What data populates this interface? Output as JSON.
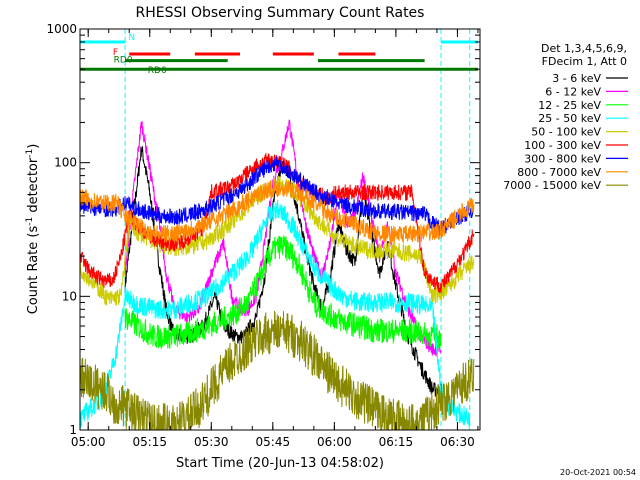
{
  "chart_data": {
    "type": "line",
    "title": "RHESSI Observing Summary Count Rates",
    "xlabel": "Start Time (20-Jun-13 04:58:02)",
    "ylabel_parts": [
      "Count Rate (s",
      "-1",
      " detector",
      "-1",
      ")"
    ],
    "yscale": "log",
    "ylim": [
      1,
      1000
    ],
    "xlim_minutes": [
      0,
      97.5
    ],
    "y_ticks": [
      {
        "v": 1,
        "label": "1"
      },
      {
        "v": 10,
        "label": "10"
      },
      {
        "v": 100,
        "label": "100"
      },
      {
        "v": 1000,
        "label": "1000"
      }
    ],
    "x_ticks": [
      {
        "t": 2,
        "label": "05:00"
      },
      {
        "t": 17,
        "label": "05:15"
      },
      {
        "t": 32,
        "label": "05:30"
      },
      {
        "t": 47,
        "label": "05:45"
      },
      {
        "t": 62,
        "label": "06:00"
      },
      {
        "t": 77,
        "label": "06:15"
      },
      {
        "t": 92,
        "label": "06:30"
      }
    ],
    "legend_header": [
      "Det 1,3,4,5,6,9,",
      "FDecim 1, Att 0"
    ],
    "timestamp": "20-Oct-2021 00:54",
    "night_intervals_minutes": [
      [
        0,
        11
      ],
      [
        88,
        95
      ]
    ],
    "flags": [
      {
        "label": "N",
        "color": "#00ffff",
        "y": 800,
        "segments": [
          [
            0,
            11
          ],
          [
            88,
            97
          ]
        ]
      },
      {
        "label": "F",
        "color": "#ff0000",
        "y": 650,
        "segments": [
          [
            12,
            22
          ],
          [
            28,
            39
          ],
          [
            47,
            57
          ],
          [
            63,
            72
          ]
        ]
      },
      {
        "label": "RD0",
        "color": "#007700",
        "y": 580,
        "segments": [
          [
            11,
            36
          ],
          [
            58,
            84
          ]
        ]
      },
      {
        "label": "RD6",
        "color": "#007700",
        "y": 500,
        "segments": [
          [
            0,
            88
          ],
          [
            88,
            97
          ]
        ]
      }
    ],
    "series": [
      {
        "name": "3 - 6 keV",
        "color": "#000000",
        "points": [
          [
            11,
            12
          ],
          [
            13,
            40
          ],
          [
            15,
            130
          ],
          [
            17,
            60
          ],
          [
            19,
            20
          ],
          [
            21,
            8
          ],
          [
            23,
            5
          ],
          [
            27,
            5
          ],
          [
            30,
            6
          ],
          [
            33,
            10
          ],
          [
            35,
            6
          ],
          [
            38,
            5
          ],
          [
            40,
            5
          ],
          [
            43,
            7
          ],
          [
            45,
            14
          ],
          [
            47,
            45
          ],
          [
            49,
            95
          ],
          [
            51,
            80
          ],
          [
            53,
            45
          ],
          [
            55,
            22
          ],
          [
            57,
            12
          ],
          [
            59,
            8
          ],
          [
            61,
            14
          ],
          [
            63,
            35
          ],
          [
            65,
            22
          ],
          [
            67,
            18
          ],
          [
            69,
            60
          ],
          [
            71,
            30
          ],
          [
            73,
            15
          ],
          [
            75,
            25
          ],
          [
            77,
            12
          ],
          [
            80,
            5
          ],
          [
            83,
            3
          ],
          [
            86,
            2
          ],
          [
            88,
            2
          ]
        ]
      },
      {
        "name": "6 - 12 keV",
        "color": "#ff00ff",
        "points": [
          [
            11,
            15
          ],
          [
            13,
            60
          ],
          [
            15,
            200
          ],
          [
            17,
            90
          ],
          [
            19,
            40
          ],
          [
            21,
            15
          ],
          [
            23,
            8
          ],
          [
            26,
            7
          ],
          [
            29,
            8
          ],
          [
            32,
            15
          ],
          [
            35,
            25
          ],
          [
            37,
            10
          ],
          [
            39,
            8
          ],
          [
            41,
            8
          ],
          [
            43,
            10
          ],
          [
            45,
            25
          ],
          [
            47,
            70
          ],
          [
            49,
            110
          ],
          [
            51,
            200
          ],
          [
            53,
            80
          ],
          [
            55,
            35
          ],
          [
            57,
            20
          ],
          [
            59,
            14
          ],
          [
            61,
            25
          ],
          [
            63,
            60
          ],
          [
            65,
            35
          ],
          [
            67,
            40
          ],
          [
            69,
            80
          ],
          [
            71,
            40
          ],
          [
            73,
            20
          ],
          [
            75,
            35
          ],
          [
            77,
            15
          ],
          [
            80,
            8
          ],
          [
            83,
            5
          ],
          [
            86,
            4
          ],
          [
            88,
            4
          ]
        ]
      },
      {
        "name": "12 - 25 keV",
        "color": "#00ff00",
        "points": [
          [
            11,
            7
          ],
          [
            14,
            6
          ],
          [
            18,
            5
          ],
          [
            22,
            5
          ],
          [
            26,
            5.2
          ],
          [
            30,
            5.8
          ],
          [
            34,
            6.5
          ],
          [
            38,
            7.5
          ],
          [
            41,
            9
          ],
          [
            43,
            12
          ],
          [
            45,
            17
          ],
          [
            47,
            22
          ],
          [
            49,
            24
          ],
          [
            51,
            22
          ],
          [
            53,
            18
          ],
          [
            55,
            13
          ],
          [
            57,
            9
          ],
          [
            60,
            7.5
          ],
          [
            64,
            6.5
          ],
          [
            68,
            6
          ],
          [
            72,
            5.5
          ],
          [
            76,
            5.5
          ],
          [
            80,
            5.5
          ],
          [
            84,
            5.2
          ],
          [
            88,
            5
          ]
        ]
      },
      {
        "name": "25 - 50 keV",
        "color": "#00ffff",
        "points": [
          [
            0,
            1.2
          ],
          [
            3,
            1.5
          ],
          [
            6,
            1.8
          ],
          [
            9,
            4
          ],
          [
            11,
            10
          ],
          [
            13,
            9
          ],
          [
            15,
            8.5
          ],
          [
            19,
            8
          ],
          [
            23,
            8
          ],
          [
            27,
            9
          ],
          [
            31,
            10
          ],
          [
            35,
            13
          ],
          [
            39,
            17
          ],
          [
            42,
            22
          ],
          [
            44,
            30
          ],
          [
            46,
            40
          ],
          [
            48,
            45
          ],
          [
            50,
            40
          ],
          [
            52,
            33
          ],
          [
            54,
            25
          ],
          [
            56,
            19
          ],
          [
            58,
            15
          ],
          [
            61,
            12
          ],
          [
            64,
            10
          ],
          [
            68,
            9
          ],
          [
            72,
            9
          ],
          [
            76,
            9
          ],
          [
            80,
            9
          ],
          [
            84,
            8.5
          ],
          [
            86,
            8
          ],
          [
            88,
            2
          ],
          [
            90,
            1.5
          ],
          [
            93,
            1.3
          ],
          [
            95,
            1.2
          ]
        ]
      },
      {
        "name": "50 - 100 keV",
        "color": "#cccc00",
        "points": [
          [
            0,
            16
          ],
          [
            3,
            13
          ],
          [
            5,
            11
          ],
          [
            7,
            9.5
          ],
          [
            10,
            10
          ],
          [
            12,
            35
          ],
          [
            14,
            30
          ],
          [
            17,
            27
          ],
          [
            20,
            24
          ],
          [
            24,
            23
          ],
          [
            28,
            24
          ],
          [
            31,
            26
          ],
          [
            34,
            30
          ],
          [
            37,
            36
          ],
          [
            40,
            44
          ],
          [
            43,
            55
          ],
          [
            46,
            65
          ],
          [
            49,
            70
          ],
          [
            52,
            62
          ],
          [
            55,
            48
          ],
          [
            58,
            37
          ],
          [
            61,
            30
          ],
          [
            64,
            26
          ],
          [
            68,
            23
          ],
          [
            72,
            22
          ],
          [
            76,
            22
          ],
          [
            80,
            21
          ],
          [
            83,
            20
          ],
          [
            86,
            10
          ],
          [
            89,
            11
          ],
          [
            92,
            14
          ],
          [
            94,
            16
          ],
          [
            96,
            18
          ]
        ]
      },
      {
        "name": "100 - 300 keV",
        "color": "#ff0000",
        "points": [
          [
            0,
            20
          ],
          [
            2,
            16
          ],
          [
            4,
            14
          ],
          [
            6,
            13
          ],
          [
            8,
            13
          ],
          [
            10,
            20
          ],
          [
            12,
            40
          ],
          [
            15,
            32
          ],
          [
            18,
            27
          ],
          [
            21,
            25
          ],
          [
            24,
            25
          ],
          [
            27,
            28
          ],
          [
            30,
            32
          ],
          [
            32,
            60
          ],
          [
            36,
            65
          ],
          [
            38,
            70
          ],
          [
            40,
            80
          ],
          [
            43,
            95
          ],
          [
            46,
            105
          ],
          [
            49,
            100
          ],
          [
            51,
            90
          ],
          [
            53,
            75
          ],
          [
            55,
            65
          ],
          [
            57,
            60
          ],
          [
            60,
            55
          ],
          [
            63,
            60
          ],
          [
            67,
            60
          ],
          [
            70,
            60
          ],
          [
            74,
            60
          ],
          [
            78,
            60
          ],
          [
            81,
            60
          ],
          [
            84,
            15
          ],
          [
            86,
            13
          ],
          [
            88,
            12
          ],
          [
            90,
            14
          ],
          [
            92,
            18
          ],
          [
            94,
            22
          ],
          [
            96,
            30
          ]
        ]
      },
      {
        "name": "300 - 800 keV",
        "color": "#0000ff",
        "points": [
          [
            0,
            48
          ],
          [
            3,
            46
          ],
          [
            6,
            45
          ],
          [
            9,
            45
          ],
          [
            11,
            50
          ],
          [
            14,
            45
          ],
          [
            17,
            42
          ],
          [
            20,
            40
          ],
          [
            24,
            39
          ],
          [
            28,
            42
          ],
          [
            32,
            47
          ],
          [
            36,
            55
          ],
          [
            40,
            65
          ],
          [
            43,
            80
          ],
          [
            46,
            95
          ],
          [
            48,
            100
          ],
          [
            50,
            92
          ],
          [
            52,
            80
          ],
          [
            55,
            68
          ],
          [
            58,
            58
          ],
          [
            61,
            52
          ],
          [
            65,
            48
          ],
          [
            69,
            45
          ],
          [
            73,
            43
          ],
          [
            77,
            43
          ],
          [
            81,
            42
          ],
          [
            84,
            41
          ],
          [
            86,
            35
          ],
          [
            88,
            32
          ],
          [
            90,
            35
          ],
          [
            93,
            40
          ],
          [
            96,
            45
          ]
        ]
      },
      {
        "name": "800 - 7000 keV",
        "color": "#ff8800",
        "points": [
          [
            0,
            55
          ],
          [
            3,
            52
          ],
          [
            6,
            50
          ],
          [
            9,
            50
          ],
          [
            11,
            40
          ],
          [
            14,
            34
          ],
          [
            17,
            30
          ],
          [
            20,
            29
          ],
          [
            24,
            30
          ],
          [
            28,
            33
          ],
          [
            32,
            37
          ],
          [
            36,
            42
          ],
          [
            40,
            50
          ],
          [
            44,
            60
          ],
          [
            48,
            65
          ],
          [
            51,
            64
          ],
          [
            54,
            58
          ],
          [
            57,
            50
          ],
          [
            60,
            43
          ],
          [
            64,
            37
          ],
          [
            68,
            33
          ],
          [
            72,
            30
          ],
          [
            76,
            29
          ],
          [
            80,
            29
          ],
          [
            84,
            30
          ],
          [
            87,
            30
          ],
          [
            90,
            35
          ],
          [
            93,
            42
          ],
          [
            96,
            48
          ]
        ]
      },
      {
        "name": "7000 - 15000 keV",
        "color": "#888800",
        "points": [
          [
            0,
            2.5
          ],
          [
            3,
            2.2
          ],
          [
            6,
            2
          ],
          [
            9,
            1.5
          ],
          [
            11,
            1.5
          ],
          [
            14,
            1.3
          ],
          [
            18,
            1.1
          ],
          [
            22,
            1.1
          ],
          [
            26,
            1.2
          ],
          [
            30,
            1.6
          ],
          [
            34,
            2.5
          ],
          [
            38,
            3.5
          ],
          [
            42,
            4.5
          ],
          [
            45,
            5.2
          ],
          [
            48,
            5.5
          ],
          [
            51,
            5.3
          ],
          [
            54,
            4.6
          ],
          [
            57,
            3.6
          ],
          [
            60,
            2.8
          ],
          [
            64,
            2.1
          ],
          [
            68,
            1.7
          ],
          [
            72,
            1.4
          ],
          [
            76,
            1.2
          ],
          [
            80,
            1.1
          ],
          [
            84,
            1.2
          ],
          [
            87,
            1.5
          ],
          [
            90,
            1.8
          ],
          [
            93,
            2.2
          ],
          [
            96,
            2.5
          ]
        ]
      }
    ]
  }
}
